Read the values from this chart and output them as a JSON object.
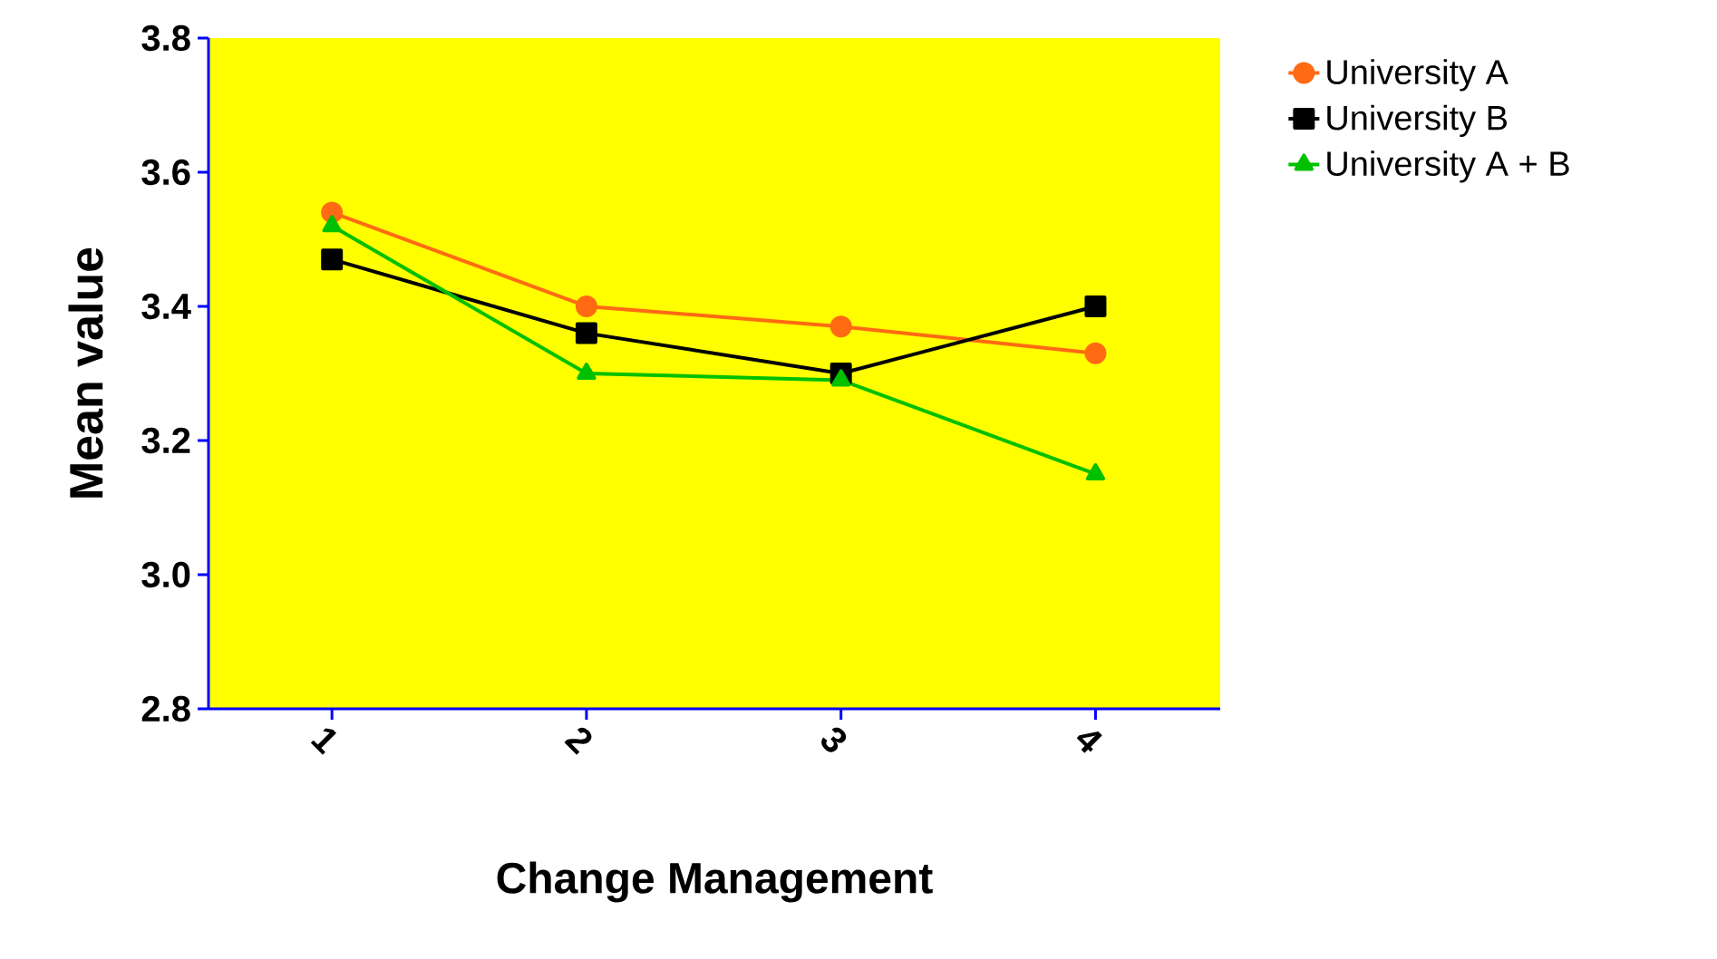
{
  "chart_data": {
    "type": "line",
    "xlabel": "Change Management",
    "ylabel": "Mean value",
    "categories": [
      "1",
      "2",
      "3",
      "4"
    ],
    "series": [
      {
        "name": "University A",
        "color": "#ff6a13",
        "marker": "circle",
        "values": [
          3.54,
          3.4,
          3.37,
          3.33
        ]
      },
      {
        "name": "University B",
        "color": "#000000",
        "marker": "square",
        "values": [
          3.47,
          3.36,
          3.3,
          3.4
        ]
      },
      {
        "name": "University A + B",
        "color": "#00c000",
        "marker": "triangle",
        "values": [
          3.52,
          3.3,
          3.29,
          3.15
        ]
      }
    ],
    "ylim": [
      2.8,
      3.8
    ],
    "yticks": [
      2.8,
      {
        "value": 3.0,
        "label": "3.0"
      },
      3.2,
      3.4,
      3.6,
      3.8
    ],
    "grid": false,
    "legend": "top right",
    "line_style": "solid"
  }
}
